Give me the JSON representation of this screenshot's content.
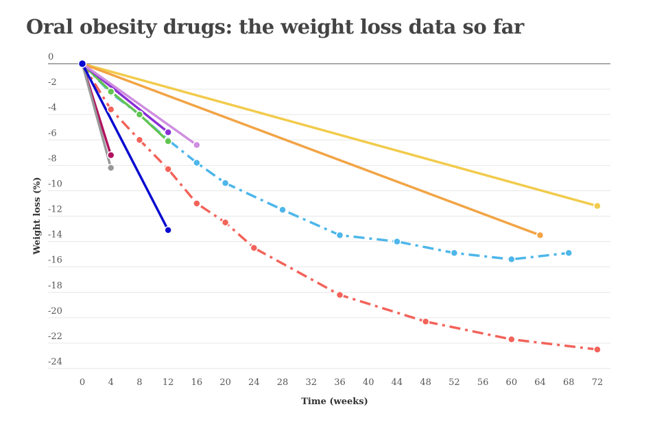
{
  "chart_data": {
    "type": "line",
    "title": "Oral obesity drugs: the weight loss data so far",
    "xlabel": "Time (weeks)",
    "ylabel": "Weight loss (%)",
    "xlim": [
      0,
      72
    ],
    "ylim": [
      -24,
      0
    ],
    "xticks": [
      0,
      4,
      8,
      12,
      16,
      20,
      24,
      28,
      32,
      36,
      40,
      44,
      48,
      52,
      56,
      60,
      64,
      68,
      72
    ],
    "yticks": [
      0,
      -2,
      -4,
      -6,
      -8,
      -10,
      -12,
      -14,
      -16,
      -18,
      -20,
      -22,
      -24
    ],
    "grid": true,
    "series": [
      {
        "color": "#f2cb4c",
        "dash": false,
        "points": [
          [
            0,
            0
          ],
          [
            72,
            -11.2
          ]
        ]
      },
      {
        "color": "#f2a445",
        "dash": false,
        "points": [
          [
            0,
            0
          ],
          [
            64,
            -13.5
          ]
        ]
      },
      {
        "color": "#4db6ea",
        "dash": true,
        "points": [
          [
            0,
            0
          ],
          [
            4,
            -2.3
          ],
          [
            8,
            -4.0
          ],
          [
            12,
            -6.0
          ],
          [
            16,
            -7.8
          ],
          [
            20,
            -9.4
          ],
          [
            28,
            -11.5
          ],
          [
            36,
            -13.5
          ],
          [
            44,
            -14.0
          ],
          [
            52,
            -14.9
          ],
          [
            60,
            -15.4
          ],
          [
            68,
            -14.9
          ]
        ]
      },
      {
        "color": "#f2635a",
        "dash": true,
        "points": [
          [
            0,
            0
          ],
          [
            4,
            -3.6
          ],
          [
            8,
            -6.0
          ],
          [
            12,
            -8.3
          ],
          [
            16,
            -11.0
          ],
          [
            20,
            -12.5
          ],
          [
            24,
            -14.5
          ],
          [
            36,
            -18.2
          ],
          [
            48,
            -20.3
          ],
          [
            60,
            -21.7
          ],
          [
            72,
            -22.5
          ]
        ]
      },
      {
        "color": "#62c452",
        "dash": false,
        "points": [
          [
            0,
            0
          ],
          [
            4,
            -2.2
          ],
          [
            8,
            -4.0
          ],
          [
            12,
            -6.1
          ]
        ]
      },
      {
        "color": "#8a2fd6",
        "dash": false,
        "points": [
          [
            0,
            0
          ],
          [
            12,
            -5.4
          ]
        ]
      },
      {
        "color": "#cf8ee0",
        "dash": false,
        "points": [
          [
            0,
            0
          ],
          [
            16,
            -6.4
          ]
        ]
      },
      {
        "color": "#b0125e",
        "dash": false,
        "points": [
          [
            0,
            0
          ],
          [
            4,
            -7.2
          ]
        ]
      },
      {
        "color": "#999999",
        "dash": false,
        "points": [
          [
            0,
            0
          ],
          [
            4,
            -8.2
          ]
        ]
      },
      {
        "color": "#0a0ad0",
        "dash": false,
        "points": [
          [
            0,
            0
          ],
          [
            12,
            -13.1
          ]
        ]
      }
    ]
  }
}
